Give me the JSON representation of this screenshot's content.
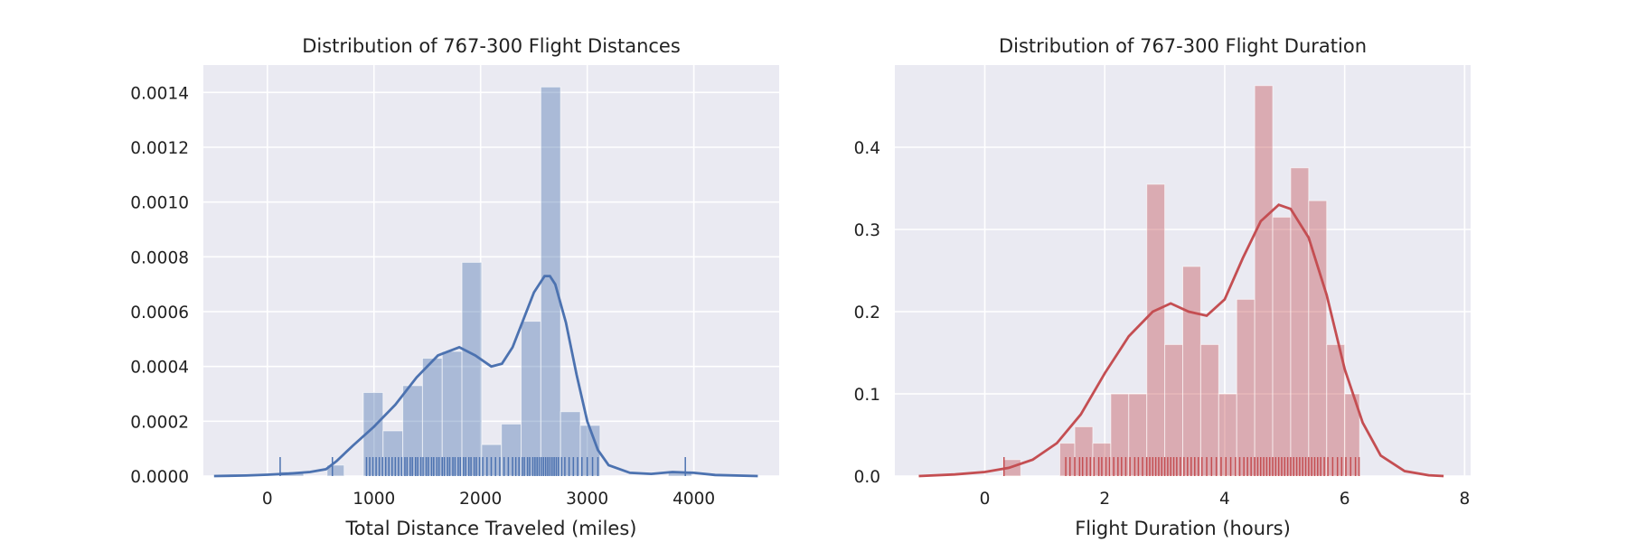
{
  "chart_data": [
    {
      "type": "histogram",
      "title": "Distribution of 767-300 Flight Distances",
      "xlabel": "Total Distance Traveled (miles)",
      "ylabel": "",
      "xlim": [
        -600,
        4800
      ],
      "ylim": [
        0,
        0.0015
      ],
      "xticks": [
        0,
        1000,
        2000,
        3000,
        4000
      ],
      "yticks": [
        0,
        0.0002,
        0.0004,
        0.0006,
        0.0008,
        0.001,
        0.0012,
        0.0014
      ],
      "ytick_labels": [
        "0.0000",
        "0.0002",
        "0.0004",
        "0.0006",
        "0.0008",
        "0.0010",
        "0.0012",
        "0.0014"
      ],
      "grid": true,
      "color": "#4c72b0",
      "bins": [
        {
          "x0": 120,
          "x1": 340,
          "density": 1.6e-05
        },
        {
          "x0": 560,
          "x1": 720,
          "density": 4e-05
        },
        {
          "x0": 900,
          "x1": 1085,
          "density": 0.000305
        },
        {
          "x0": 1085,
          "x1": 1270,
          "density": 0.000165
        },
        {
          "x0": 1270,
          "x1": 1455,
          "density": 0.00033
        },
        {
          "x0": 1455,
          "x1": 1640,
          "density": 0.00043
        },
        {
          "x0": 1640,
          "x1": 1825,
          "density": 0.000455
        },
        {
          "x0": 1825,
          "x1": 2010,
          "density": 0.00078
        },
        {
          "x0": 2010,
          "x1": 2195,
          "density": 0.000115
        },
        {
          "x0": 2195,
          "x1": 2380,
          "density": 0.00019
        },
        {
          "x0": 2380,
          "x1": 2565,
          "density": 0.000565
        },
        {
          "x0": 2565,
          "x1": 2750,
          "density": 0.00142
        },
        {
          "x0": 2750,
          "x1": 2935,
          "density": 0.000235
        },
        {
          "x0": 2935,
          "x1": 3120,
          "density": 0.000185
        },
        {
          "x0": 3760,
          "x1": 3980,
          "density": 1.6e-05
        }
      ],
      "kde": {
        "x": [
          -500,
          -200,
          0,
          200,
          400,
          550,
          650,
          800,
          1000,
          1200,
          1400,
          1600,
          1800,
          1950,
          2100,
          2200,
          2300,
          2400,
          2500,
          2600,
          2650,
          2700,
          2800,
          2900,
          3000,
          3100,
          3200,
          3400,
          3600,
          3800,
          4000,
          4200,
          4600
        ],
        "y": [
          0.0,
          2e-06,
          5e-06,
          9e-06,
          1.5e-05,
          2.5e-05,
          5.5e-05,
          0.00011,
          0.00018,
          0.00026,
          0.00036,
          0.00044,
          0.00047,
          0.00044,
          0.0004,
          0.00041,
          0.00047,
          0.00057,
          0.00067,
          0.00073,
          0.00073,
          0.0007,
          0.00056,
          0.00037,
          0.0002,
          9.5e-05,
          4e-05,
          1.2e-05,
          8e-06,
          1.5e-05,
          1.2e-05,
          4e-06,
          0.0
        ]
      },
      "rug": [
        120,
        610,
        930,
        960,
        990,
        1020,
        1050,
        1080,
        1110,
        1140,
        1170,
        1200,
        1230,
        1260,
        1290,
        1310,
        1340,
        1360,
        1390,
        1410,
        1440,
        1460,
        1490,
        1510,
        1540,
        1560,
        1590,
        1610,
        1640,
        1660,
        1690,
        1710,
        1740,
        1760,
        1790,
        1810,
        1840,
        1860,
        1890,
        1910,
        1940,
        1960,
        1990,
        2020,
        2060,
        2100,
        2140,
        2180,
        2220,
        2260,
        2300,
        2330,
        2360,
        2390,
        2410,
        2440,
        2460,
        2490,
        2510,
        2530,
        2550,
        2570,
        2590,
        2610,
        2630,
        2650,
        2670,
        2690,
        2710,
        2730,
        2760,
        2790,
        2830,
        2870,
        2910,
        2950,
        3000,
        3050,
        3100,
        3920
      ]
    },
    {
      "type": "histogram",
      "title": "Distribution of 767-300 Flight Duration",
      "xlabel": "Flight Duration (hours)",
      "ylabel": "",
      "xlim": [
        -1.5,
        8.1
      ],
      "ylim": [
        0,
        0.5
      ],
      "xticks": [
        0,
        2,
        4,
        6,
        8
      ],
      "yticks": [
        0,
        0.1,
        0.2,
        0.3,
        0.4
      ],
      "ytick_labels": [
        "0.0",
        "0.1",
        "0.2",
        "0.3",
        "0.4"
      ],
      "grid": true,
      "color": "#c44e52",
      "bins": [
        {
          "x0": 0.3,
          "x1": 0.6,
          "density": 0.02
        },
        {
          "x0": 1.25,
          "x1": 1.5,
          "density": 0.04
        },
        {
          "x0": 1.5,
          "x1": 1.8,
          "density": 0.06
        },
        {
          "x0": 1.8,
          "x1": 2.1,
          "density": 0.04
        },
        {
          "x0": 2.1,
          "x1": 2.4,
          "density": 0.1
        },
        {
          "x0": 2.4,
          "x1": 2.7,
          "density": 0.1
        },
        {
          "x0": 2.7,
          "x1": 3.0,
          "density": 0.355
        },
        {
          "x0": 3.0,
          "x1": 3.3,
          "density": 0.16
        },
        {
          "x0": 3.3,
          "x1": 3.6,
          "density": 0.255
        },
        {
          "x0": 3.6,
          "x1": 3.9,
          "density": 0.16
        },
        {
          "x0": 3.9,
          "x1": 4.2,
          "density": 0.1
        },
        {
          "x0": 4.2,
          "x1": 4.5,
          "density": 0.215
        },
        {
          "x0": 4.5,
          "x1": 4.8,
          "density": 0.475
        },
        {
          "x0": 4.8,
          "x1": 5.1,
          "density": 0.315
        },
        {
          "x0": 5.1,
          "x1": 5.4,
          "density": 0.375
        },
        {
          "x0": 5.4,
          "x1": 5.7,
          "density": 0.335
        },
        {
          "x0": 5.7,
          "x1": 6.0,
          "density": 0.16
        },
        {
          "x0": 6.0,
          "x1": 6.25,
          "density": 0.1
        }
      ],
      "kde": {
        "x": [
          -1.1,
          -0.5,
          0.0,
          0.4,
          0.8,
          1.2,
          1.6,
          2.0,
          2.4,
          2.8,
          3.1,
          3.4,
          3.7,
          4.0,
          4.3,
          4.6,
          4.9,
          5.1,
          5.4,
          5.7,
          6.0,
          6.3,
          6.6,
          7.0,
          7.4,
          7.65
        ],
        "y": [
          0.0,
          0.002,
          0.005,
          0.01,
          0.02,
          0.04,
          0.075,
          0.125,
          0.17,
          0.2,
          0.21,
          0.2,
          0.195,
          0.215,
          0.265,
          0.31,
          0.33,
          0.325,
          0.29,
          0.22,
          0.13,
          0.065,
          0.025,
          0.006,
          0.001,
          0.0
        ]
      },
      "rug": [
        0.32,
        1.35,
        1.42,
        1.5,
        1.58,
        1.63,
        1.7,
        1.76,
        1.82,
        1.9,
        1.95,
        2.02,
        2.08,
        2.15,
        2.22,
        2.28,
        2.35,
        2.42,
        2.5,
        2.56,
        2.63,
        2.7,
        2.75,
        2.8,
        2.85,
        2.9,
        2.95,
        3.0,
        3.05,
        3.1,
        3.15,
        3.2,
        3.26,
        3.32,
        3.38,
        3.44,
        3.5,
        3.56,
        3.62,
        3.7,
        3.78,
        3.86,
        3.94,
        4.02,
        4.1,
        4.18,
        4.25,
        4.32,
        4.38,
        4.44,
        4.5,
        4.55,
        4.6,
        4.65,
        4.7,
        4.75,
        4.8,
        4.85,
        4.9,
        4.95,
        5.0,
        5.05,
        5.1,
        5.15,
        5.2,
        5.25,
        5.3,
        5.35,
        5.4,
        5.45,
        5.5,
        5.55,
        5.6,
        5.66,
        5.72,
        5.8,
        5.88,
        5.95,
        6.02,
        6.1,
        6.18,
        6.24
      ]
    }
  ]
}
